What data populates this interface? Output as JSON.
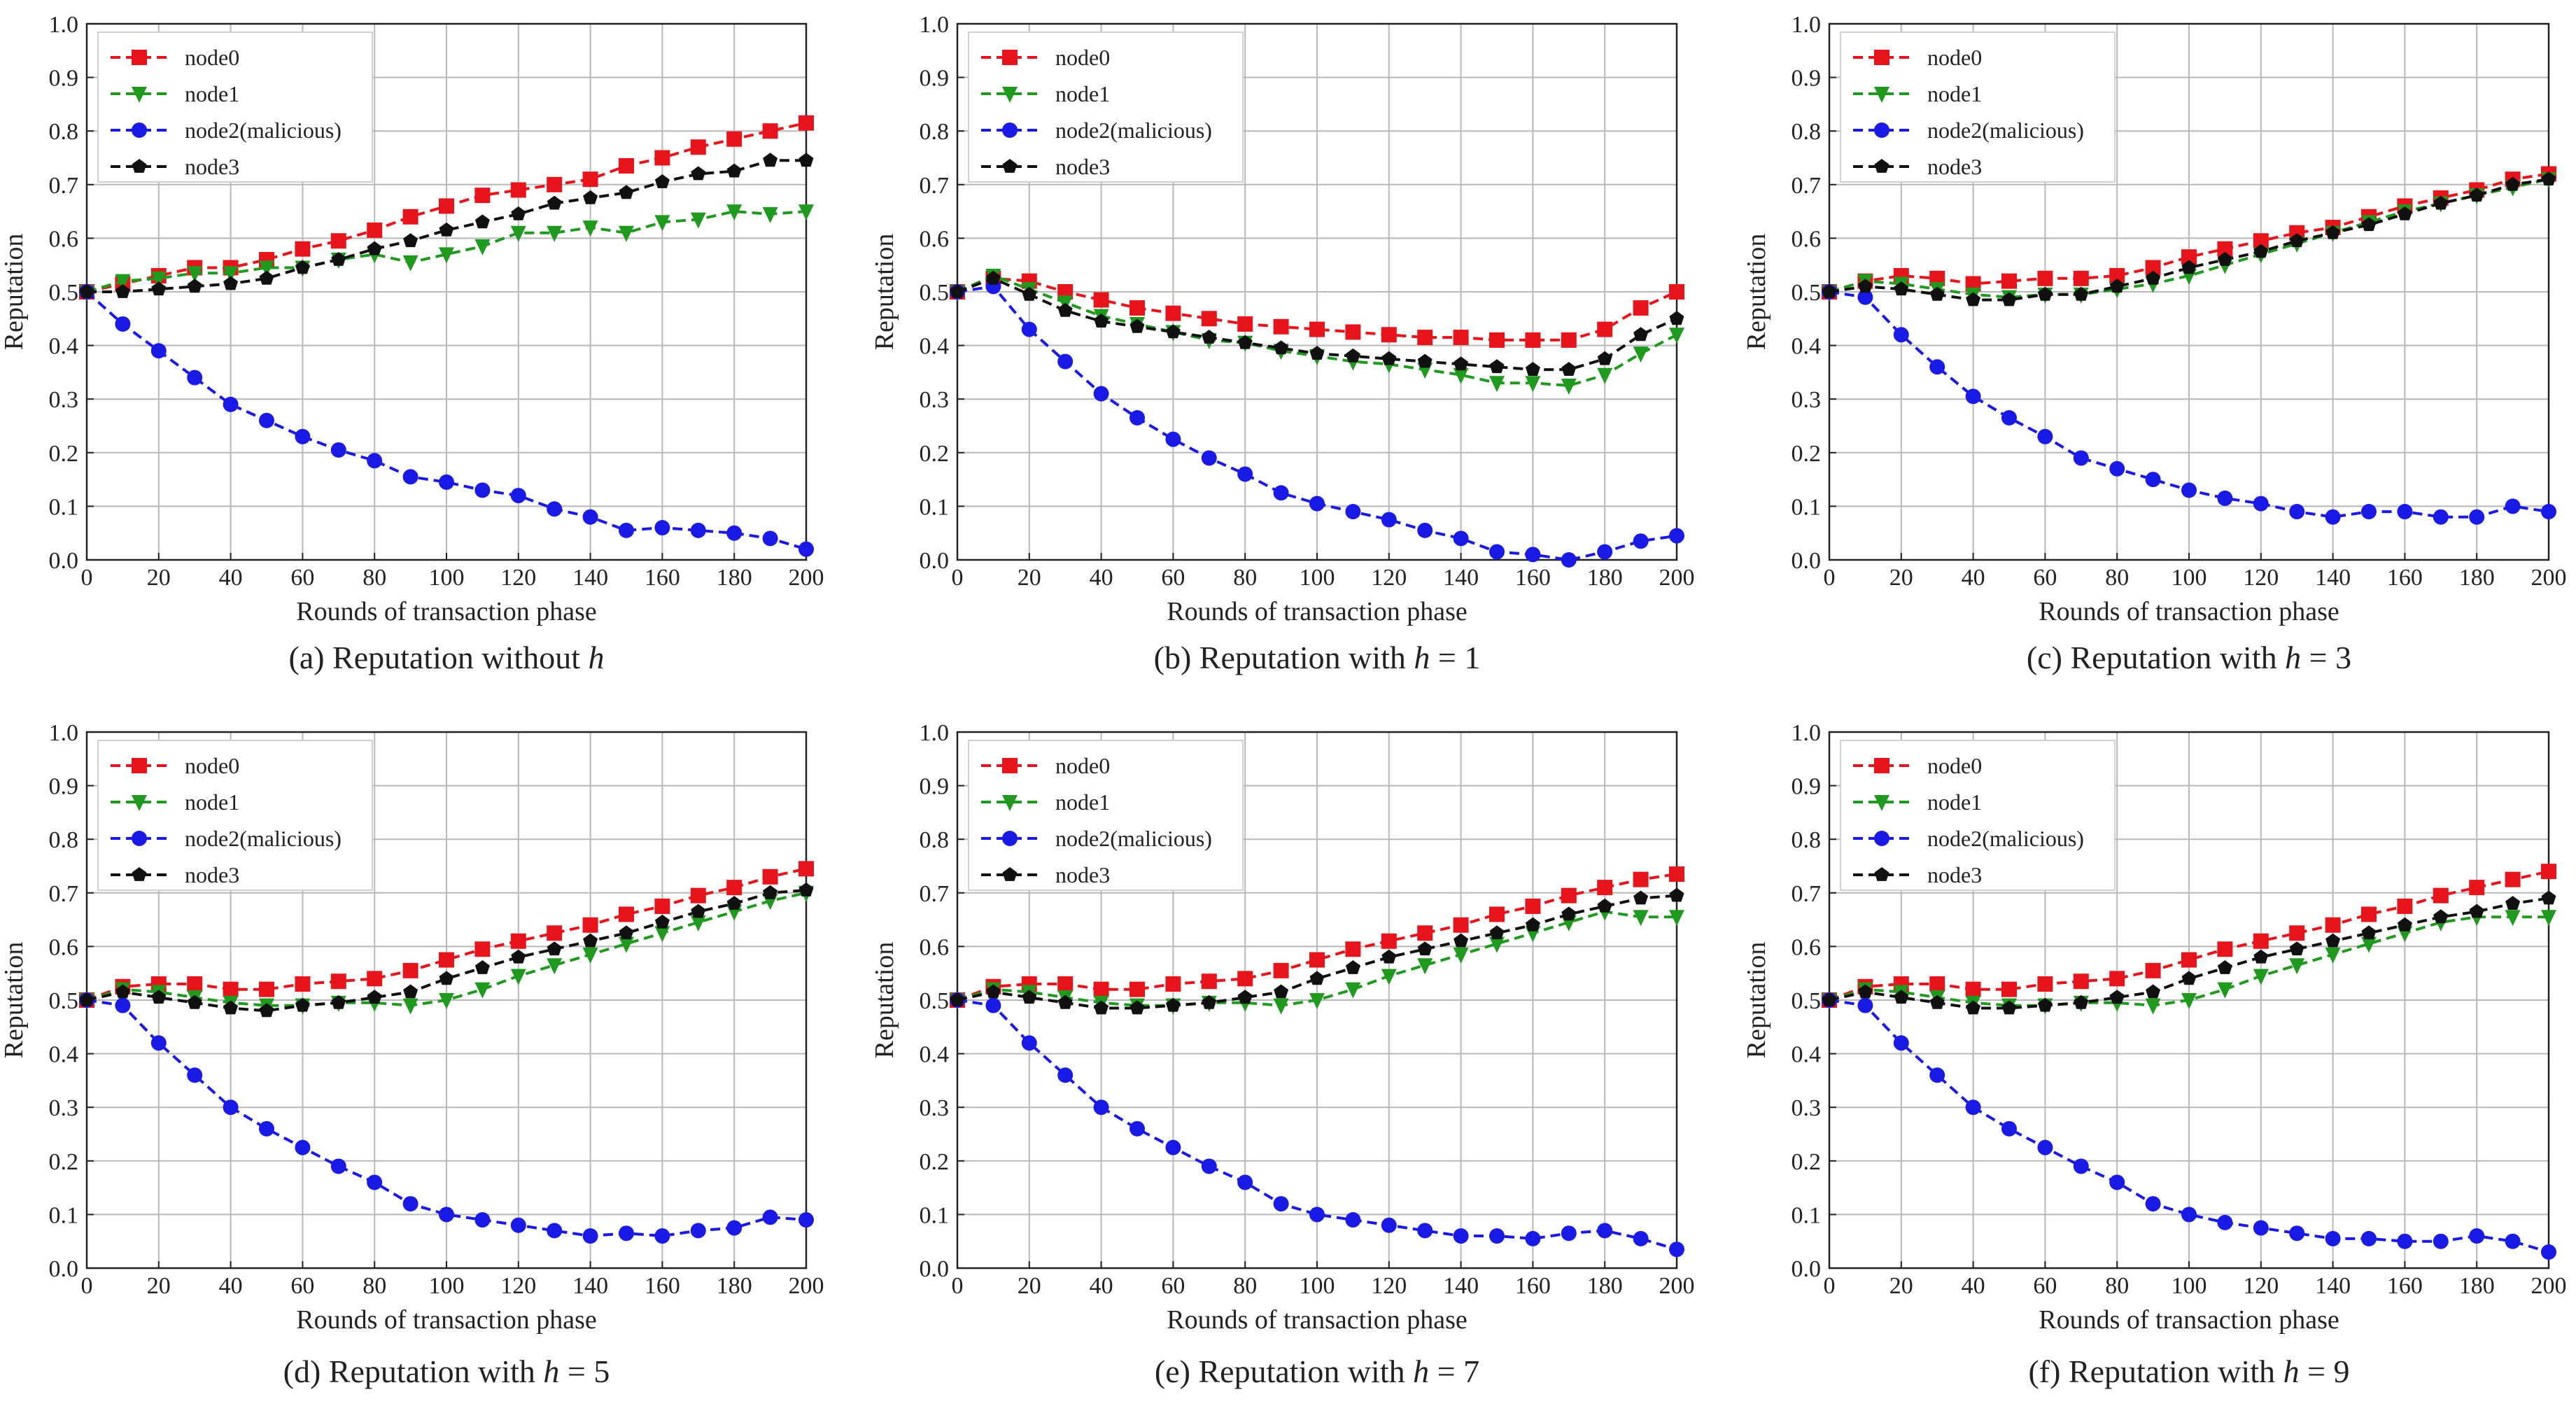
{
  "chart_data": [
    {
      "type": "line",
      "caption_prefix": "(a) Reputation without ",
      "caption_var": "h",
      "caption_suffix": "",
      "xlabel": "Rounds of transaction phase",
      "ylabel": "Reputation",
      "xlim": [
        0,
        200
      ],
      "ylim": [
        0,
        1.0
      ],
      "x_ticks": [
        "0",
        "20",
        "40",
        "60",
        "80",
        "100",
        "120",
        "140",
        "160",
        "180",
        "200"
      ],
      "y_ticks": [
        "0.0",
        "0.1",
        "0.2",
        "0.3",
        "0.4",
        "0.5",
        "0.6",
        "0.7",
        "0.8",
        "0.9",
        "1.0"
      ],
      "grid": true,
      "legend_position": "top-left",
      "x": [
        0,
        10,
        20,
        30,
        40,
        50,
        60,
        70,
        80,
        90,
        100,
        110,
        120,
        130,
        140,
        150,
        160,
        170,
        180,
        190,
        200
      ],
      "series": [
        {
          "name": "node0",
          "color": "#e8141b",
          "marker": "square",
          "values": [
            0.5,
            0.515,
            0.53,
            0.545,
            0.545,
            0.56,
            0.58,
            0.595,
            0.615,
            0.64,
            0.66,
            0.68,
            0.69,
            0.7,
            0.71,
            0.735,
            0.75,
            0.77,
            0.785,
            0.8,
            0.815
          ]
        },
        {
          "name": "node1",
          "color": "#1f9a1f",
          "marker": "triangle-down",
          "values": [
            0.5,
            0.52,
            0.525,
            0.535,
            0.535,
            0.545,
            0.545,
            0.56,
            0.57,
            0.555,
            0.57,
            0.585,
            0.61,
            0.61,
            0.62,
            0.61,
            0.63,
            0.635,
            0.65,
            0.645,
            0.65
          ]
        },
        {
          "name": "node2(malicious)",
          "color": "#1a1ae6",
          "marker": "circle",
          "values": [
            0.5,
            0.44,
            0.39,
            0.34,
            0.29,
            0.26,
            0.23,
            0.205,
            0.185,
            0.155,
            0.145,
            0.13,
            0.12,
            0.095,
            0.08,
            0.055,
            0.06,
            0.055,
            0.05,
            0.04,
            0.02
          ]
        },
        {
          "name": "node3",
          "color": "#111111",
          "marker": "pentagon",
          "values": [
            0.5,
            0.5,
            0.505,
            0.51,
            0.515,
            0.525,
            0.545,
            0.56,
            0.58,
            0.595,
            0.615,
            0.63,
            0.645,
            0.665,
            0.675,
            0.685,
            0.705,
            0.72,
            0.725,
            0.745,
            0.745
          ]
        }
      ]
    },
    {
      "type": "line",
      "caption_prefix": "(b) Reputation with ",
      "caption_var": "h",
      "caption_suffix": " = 1",
      "xlabel": "Rounds of transaction phase",
      "ylabel": "Reputation",
      "xlim": [
        0,
        200
      ],
      "ylim": [
        0,
        1.0
      ],
      "x_ticks": [
        "0",
        "20",
        "40",
        "60",
        "80",
        "100",
        "120",
        "140",
        "160",
        "180",
        "200"
      ],
      "y_ticks": [
        "0.0",
        "0.1",
        "0.2",
        "0.3",
        "0.4",
        "0.5",
        "0.6",
        "0.7",
        "0.8",
        "0.9",
        "1.0"
      ],
      "grid": true,
      "legend_position": "top-left",
      "x": [
        0,
        10,
        20,
        30,
        40,
        50,
        60,
        70,
        80,
        90,
        100,
        110,
        120,
        130,
        140,
        150,
        160,
        170,
        180,
        190,
        200
      ],
      "series": [
        {
          "name": "node0",
          "color": "#e8141b",
          "marker": "square",
          "values": [
            0.5,
            0.525,
            0.52,
            0.5,
            0.485,
            0.47,
            0.46,
            0.45,
            0.44,
            0.435,
            0.43,
            0.425,
            0.42,
            0.415,
            0.415,
            0.41,
            0.41,
            0.41,
            0.43,
            0.47,
            0.5
          ]
        },
        {
          "name": "node1",
          "color": "#1f9a1f",
          "marker": "triangle-down",
          "values": [
            0.5,
            0.53,
            0.505,
            0.48,
            0.455,
            0.44,
            0.425,
            0.41,
            0.405,
            0.39,
            0.38,
            0.37,
            0.365,
            0.355,
            0.345,
            0.33,
            0.33,
            0.325,
            0.345,
            0.385,
            0.42
          ]
        },
        {
          "name": "node2(malicious)",
          "color": "#1a1ae6",
          "marker": "circle",
          "values": [
            0.5,
            0.51,
            0.43,
            0.37,
            0.31,
            0.265,
            0.225,
            0.19,
            0.16,
            0.125,
            0.105,
            0.09,
            0.075,
            0.055,
            0.04,
            0.015,
            0.01,
            0.0,
            0.015,
            0.035,
            0.045
          ]
        },
        {
          "name": "node3",
          "color": "#111111",
          "marker": "pentagon",
          "values": [
            0.5,
            0.525,
            0.495,
            0.465,
            0.445,
            0.435,
            0.425,
            0.415,
            0.405,
            0.395,
            0.385,
            0.38,
            0.375,
            0.37,
            0.365,
            0.36,
            0.355,
            0.355,
            0.375,
            0.42,
            0.45
          ]
        }
      ]
    },
    {
      "type": "line",
      "caption_prefix": "(c) Reputation with ",
      "caption_var": "h",
      "caption_suffix": " = 3",
      "xlabel": "Rounds of transaction phase",
      "ylabel": "Reputation",
      "xlim": [
        0,
        200
      ],
      "ylim": [
        0,
        1.0
      ],
      "x_ticks": [
        "0",
        "20",
        "40",
        "60",
        "80",
        "100",
        "120",
        "140",
        "160",
        "180",
        "200"
      ],
      "y_ticks": [
        "0.0",
        "0.1",
        "0.2",
        "0.3",
        "0.4",
        "0.5",
        "0.6",
        "0.7",
        "0.8",
        "0.9",
        "1.0"
      ],
      "grid": true,
      "legend_position": "top-left",
      "x": [
        0,
        10,
        20,
        30,
        40,
        50,
        60,
        70,
        80,
        90,
        100,
        110,
        120,
        130,
        140,
        150,
        160,
        170,
        180,
        190,
        200
      ],
      "series": [
        {
          "name": "node0",
          "color": "#e8141b",
          "marker": "square",
          "values": [
            0.5,
            0.52,
            0.53,
            0.525,
            0.515,
            0.52,
            0.525,
            0.525,
            0.53,
            0.545,
            0.565,
            0.58,
            0.595,
            0.61,
            0.62,
            0.64,
            0.66,
            0.675,
            0.69,
            0.71,
            0.72
          ]
        },
        {
          "name": "node1",
          "color": "#1f9a1f",
          "marker": "triangle-down",
          "values": [
            0.5,
            0.52,
            0.515,
            0.505,
            0.495,
            0.49,
            0.495,
            0.495,
            0.505,
            0.515,
            0.53,
            0.55,
            0.57,
            0.59,
            0.61,
            0.63,
            0.65,
            0.665,
            0.68,
            0.695,
            0.71
          ]
        },
        {
          "name": "node2(malicious)",
          "color": "#1a1ae6",
          "marker": "circle",
          "values": [
            0.5,
            0.49,
            0.42,
            0.36,
            0.305,
            0.265,
            0.23,
            0.19,
            0.17,
            0.15,
            0.13,
            0.115,
            0.105,
            0.09,
            0.08,
            0.09,
            0.09,
            0.08,
            0.08,
            0.1,
            0.09
          ]
        },
        {
          "name": "node3",
          "color": "#111111",
          "marker": "pentagon",
          "values": [
            0.5,
            0.51,
            0.505,
            0.495,
            0.485,
            0.485,
            0.495,
            0.495,
            0.51,
            0.525,
            0.545,
            0.56,
            0.575,
            0.595,
            0.61,
            0.625,
            0.645,
            0.665,
            0.68,
            0.7,
            0.71
          ]
        }
      ]
    },
    {
      "type": "line",
      "caption_prefix": "(d) Reputation with ",
      "caption_var": "h",
      "caption_suffix": " = 5",
      "xlabel": "Rounds of transaction phase",
      "ylabel": "Reputation",
      "xlim": [
        0,
        200
      ],
      "ylim": [
        0,
        1.0
      ],
      "x_ticks": [
        "0",
        "20",
        "40",
        "60",
        "80",
        "100",
        "120",
        "140",
        "160",
        "180",
        "200"
      ],
      "y_ticks": [
        "0.0",
        "0.1",
        "0.2",
        "0.3",
        "0.4",
        "0.5",
        "0.6",
        "0.7",
        "0.8",
        "0.9",
        "1.0"
      ],
      "grid": true,
      "legend_position": "top-left",
      "x": [
        0,
        10,
        20,
        30,
        40,
        50,
        60,
        70,
        80,
        90,
        100,
        110,
        120,
        130,
        140,
        150,
        160,
        170,
        180,
        190,
        200
      ],
      "series": [
        {
          "name": "node0",
          "color": "#e8141b",
          "marker": "square",
          "values": [
            0.5,
            0.525,
            0.53,
            0.53,
            0.52,
            0.52,
            0.53,
            0.535,
            0.54,
            0.555,
            0.575,
            0.595,
            0.61,
            0.625,
            0.64,
            0.66,
            0.675,
            0.695,
            0.71,
            0.73,
            0.745
          ]
        },
        {
          "name": "node1",
          "color": "#1f9a1f",
          "marker": "triangle-down",
          "values": [
            0.5,
            0.52,
            0.515,
            0.505,
            0.495,
            0.49,
            0.49,
            0.495,
            0.495,
            0.49,
            0.5,
            0.52,
            0.545,
            0.565,
            0.585,
            0.605,
            0.625,
            0.645,
            0.665,
            0.685,
            0.7
          ]
        },
        {
          "name": "node2(malicious)",
          "color": "#1a1ae6",
          "marker": "circle",
          "values": [
            0.5,
            0.49,
            0.42,
            0.36,
            0.3,
            0.26,
            0.225,
            0.19,
            0.16,
            0.12,
            0.1,
            0.09,
            0.08,
            0.07,
            0.06,
            0.065,
            0.06,
            0.07,
            0.075,
            0.095,
            0.09
          ]
        },
        {
          "name": "node3",
          "color": "#111111",
          "marker": "pentagon",
          "values": [
            0.5,
            0.515,
            0.505,
            0.495,
            0.485,
            0.48,
            0.49,
            0.495,
            0.505,
            0.515,
            0.54,
            0.56,
            0.58,
            0.595,
            0.61,
            0.625,
            0.645,
            0.665,
            0.68,
            0.7,
            0.705
          ]
        }
      ]
    },
    {
      "type": "line",
      "caption_prefix": "(e) Reputation with ",
      "caption_var": "h",
      "caption_suffix": " = 7",
      "xlabel": "Rounds of transaction phase",
      "ylabel": "Reputation",
      "xlim": [
        0,
        200
      ],
      "ylim": [
        0,
        1.0
      ],
      "x_ticks": [
        "0",
        "20",
        "40",
        "60",
        "80",
        "100",
        "120",
        "140",
        "160",
        "180",
        "200"
      ],
      "y_ticks": [
        "0.0",
        "0.1",
        "0.2",
        "0.3",
        "0.4",
        "0.5",
        "0.6",
        "0.7",
        "0.8",
        "0.9",
        "1.0"
      ],
      "grid": true,
      "legend_position": "top-left",
      "x": [
        0,
        10,
        20,
        30,
        40,
        50,
        60,
        70,
        80,
        90,
        100,
        110,
        120,
        130,
        140,
        150,
        160,
        170,
        180,
        190,
        200
      ],
      "series": [
        {
          "name": "node0",
          "color": "#e8141b",
          "marker": "square",
          "values": [
            0.5,
            0.525,
            0.53,
            0.53,
            0.52,
            0.52,
            0.53,
            0.535,
            0.54,
            0.555,
            0.575,
            0.595,
            0.61,
            0.625,
            0.64,
            0.66,
            0.675,
            0.695,
            0.71,
            0.725,
            0.735
          ]
        },
        {
          "name": "node1",
          "color": "#1f9a1f",
          "marker": "triangle-down",
          "values": [
            0.5,
            0.52,
            0.515,
            0.505,
            0.495,
            0.49,
            0.49,
            0.495,
            0.495,
            0.49,
            0.5,
            0.52,
            0.545,
            0.565,
            0.585,
            0.605,
            0.625,
            0.645,
            0.665,
            0.655,
            0.655
          ]
        },
        {
          "name": "node2(malicious)",
          "color": "#1a1ae6",
          "marker": "circle",
          "values": [
            0.5,
            0.49,
            0.42,
            0.36,
            0.3,
            0.26,
            0.225,
            0.19,
            0.16,
            0.12,
            0.1,
            0.09,
            0.08,
            0.07,
            0.06,
            0.06,
            0.055,
            0.065,
            0.07,
            0.055,
            0.035
          ]
        },
        {
          "name": "node3",
          "color": "#111111",
          "marker": "pentagon",
          "values": [
            0.5,
            0.515,
            0.505,
            0.495,
            0.485,
            0.485,
            0.49,
            0.495,
            0.505,
            0.515,
            0.54,
            0.56,
            0.58,
            0.595,
            0.61,
            0.625,
            0.64,
            0.66,
            0.675,
            0.69,
            0.695
          ]
        }
      ]
    },
    {
      "type": "line",
      "caption_prefix": "(f) Reputation with ",
      "caption_var": "h",
      "caption_suffix": " = 9",
      "xlabel": "Rounds of transaction phase",
      "ylabel": "Reputation",
      "xlim": [
        0,
        200
      ],
      "ylim": [
        0,
        1.0
      ],
      "x_ticks": [
        "0",
        "20",
        "40",
        "60",
        "80",
        "100",
        "120",
        "140",
        "160",
        "180",
        "200"
      ],
      "y_ticks": [
        "0.0",
        "0.1",
        "0.2",
        "0.3",
        "0.4",
        "0.5",
        "0.6",
        "0.7",
        "0.8",
        "0.9",
        "1.0"
      ],
      "grid": true,
      "legend_position": "top-left",
      "x": [
        0,
        10,
        20,
        30,
        40,
        50,
        60,
        70,
        80,
        90,
        100,
        110,
        120,
        130,
        140,
        150,
        160,
        170,
        180,
        190,
        200
      ],
      "series": [
        {
          "name": "node0",
          "color": "#e8141b",
          "marker": "square",
          "values": [
            0.5,
            0.525,
            0.53,
            0.53,
            0.52,
            0.52,
            0.53,
            0.535,
            0.54,
            0.555,
            0.575,
            0.595,
            0.61,
            0.625,
            0.64,
            0.66,
            0.675,
            0.695,
            0.71,
            0.725,
            0.74
          ]
        },
        {
          "name": "node1",
          "color": "#1f9a1f",
          "marker": "triangle-down",
          "values": [
            0.5,
            0.52,
            0.515,
            0.505,
            0.495,
            0.49,
            0.49,
            0.495,
            0.495,
            0.49,
            0.5,
            0.52,
            0.545,
            0.565,
            0.585,
            0.605,
            0.625,
            0.645,
            0.655,
            0.655,
            0.655
          ]
        },
        {
          "name": "node2(malicious)",
          "color": "#1a1ae6",
          "marker": "circle",
          "values": [
            0.5,
            0.49,
            0.42,
            0.36,
            0.3,
            0.26,
            0.225,
            0.19,
            0.16,
            0.12,
            0.1,
            0.085,
            0.075,
            0.065,
            0.055,
            0.055,
            0.05,
            0.05,
            0.06,
            0.05,
            0.03
          ]
        },
        {
          "name": "node3",
          "color": "#111111",
          "marker": "pentagon",
          "values": [
            0.5,
            0.515,
            0.505,
            0.495,
            0.485,
            0.485,
            0.49,
            0.495,
            0.505,
            0.515,
            0.54,
            0.56,
            0.58,
            0.595,
            0.61,
            0.625,
            0.64,
            0.655,
            0.665,
            0.68,
            0.69
          ]
        }
      ]
    }
  ]
}
